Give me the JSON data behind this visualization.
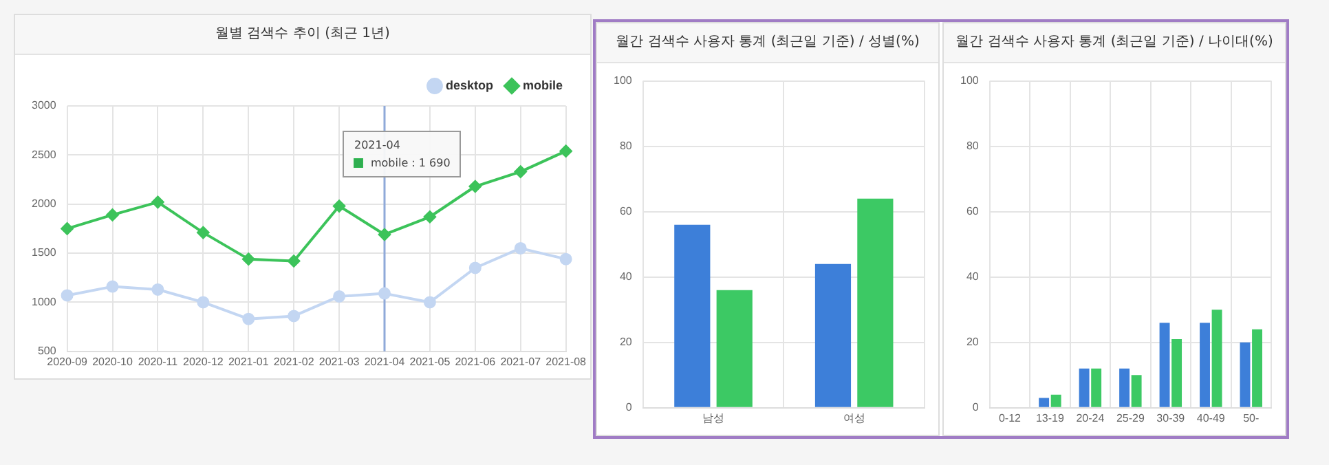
{
  "chart_data": [
    {
      "type": "line",
      "title": "월별 검색수 추이 (최근 1년)",
      "categories": [
        "2020-09",
        "2020-10",
        "2020-11",
        "2020-12",
        "2021-01",
        "2021-02",
        "2021-03",
        "2021-04",
        "2021-05",
        "2021-06",
        "2021-07",
        "2021-08"
      ],
      "series": [
        {
          "name": "desktop",
          "color": "#c3d6f2",
          "marker": "circle",
          "values": [
            1070,
            1160,
            1130,
            1000,
            830,
            860,
            1060,
            1090,
            1000,
            1350,
            1550,
            1440
          ]
        },
        {
          "name": "mobile",
          "color": "#3cc35a",
          "marker": "diamond",
          "values": [
            1750,
            1890,
            2020,
            1710,
            1440,
            1420,
            1980,
            1690,
            1870,
            2180,
            2330,
            2540
          ]
        }
      ],
      "ylim": [
        500,
        3000
      ],
      "yticks": [
        500,
        1000,
        1500,
        2000,
        2500,
        3000
      ],
      "grid": true,
      "legend": "top right",
      "ref_lines": [
        {
          "axis": "x",
          "value": "2021-04",
          "color": "#8fa9d9"
        }
      ],
      "annotations": [
        "2021-04",
        "mobile : 1 690"
      ]
    },
    {
      "type": "bar",
      "title": "월간 검색수 사용자 통계 (최근일 기준) / 성별(%)",
      "categories": [
        "남성",
        "여성"
      ],
      "series": [
        {
          "color": "#3d7fd9",
          "values": [
            56,
            44
          ]
        },
        {
          "color": "#3cc964",
          "values": [
            36,
            64
          ]
        }
      ],
      "ylim": [
        0,
        100
      ],
      "yticks": [
        0,
        20,
        40,
        60,
        80,
        100
      ],
      "grid": true
    },
    {
      "type": "bar",
      "title": "월간 검색수 사용자 통계 (최근일 기준) / 나이대(%)",
      "categories": [
        "0-12",
        "13-19",
        "20-24",
        "25-29",
        "30-39",
        "40-49",
        "50-"
      ],
      "series": [
        {
          "color": "#3d7fd9",
          "values": [
            0,
            3,
            12,
            12,
            26,
            26,
            20
          ]
        },
        {
          "color": "#3cc964",
          "values": [
            0,
            4,
            12,
            10,
            21,
            30,
            24
          ]
        }
      ],
      "ylim": [
        0,
        100
      ],
      "yticks": [
        0,
        20,
        40,
        60,
        80,
        100
      ],
      "grid": true
    }
  ]
}
